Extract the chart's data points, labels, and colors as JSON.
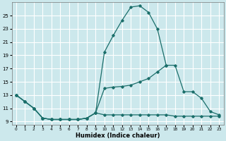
{
  "xlabel": "Humidex (Indice chaleur)",
  "xlim": [
    -0.5,
    23.5
  ],
  "ylim": [
    8.5,
    27
  ],
  "yticks": [
    9,
    11,
    13,
    15,
    17,
    19,
    21,
    23,
    25
  ],
  "xticks": [
    0,
    1,
    2,
    3,
    4,
    5,
    6,
    7,
    8,
    9,
    10,
    11,
    12,
    13,
    14,
    15,
    16,
    17,
    18,
    19,
    20,
    21,
    22,
    23
  ],
  "bg_color": "#cce8ec",
  "grid_color": "#ffffff",
  "line_color": "#1a6e6a",
  "line1": {
    "x": [
      0,
      1,
      2,
      3,
      4,
      5,
      6,
      7,
      8,
      9,
      10,
      11,
      12,
      13,
      14,
      15,
      16,
      17,
      18
    ],
    "y": [
      13,
      12,
      11,
      9.5,
      9.3,
      9.3,
      9.3,
      9.3,
      9.5,
      10.3,
      19.5,
      22,
      24.3,
      26.3,
      26.5,
      25.5,
      23,
      17.5,
      null
    ]
  },
  "line2": {
    "x": [
      0,
      1,
      2,
      3,
      4,
      5,
      6,
      7,
      8,
      9,
      10,
      11,
      12,
      13,
      14,
      15,
      16,
      17,
      18,
      19,
      20,
      21,
      22,
      23
    ],
    "y": [
      13,
      12,
      11,
      9.5,
      9.3,
      9.3,
      9.3,
      9.3,
      9.5,
      10.3,
      14,
      14.2,
      14.3,
      14.5,
      15,
      15.5,
      16.5,
      17.5,
      17.5,
      13.5,
      13.5,
      12.5,
      10.5,
      10
    ]
  },
  "line3": {
    "x": [
      0,
      1,
      2,
      3,
      4,
      5,
      6,
      7,
      8,
      9,
      10,
      11,
      12,
      13,
      14,
      15,
      16,
      17,
      18,
      19,
      20,
      21,
      22,
      23
    ],
    "y": [
      13,
      12,
      11,
      9.5,
      9.3,
      9.3,
      9.3,
      9.3,
      9.5,
      10.3,
      10,
      10,
      10,
      10,
      10,
      10,
      10,
      10,
      9.8,
      9.8,
      9.8,
      9.8,
      9.8,
      9.8
    ]
  }
}
